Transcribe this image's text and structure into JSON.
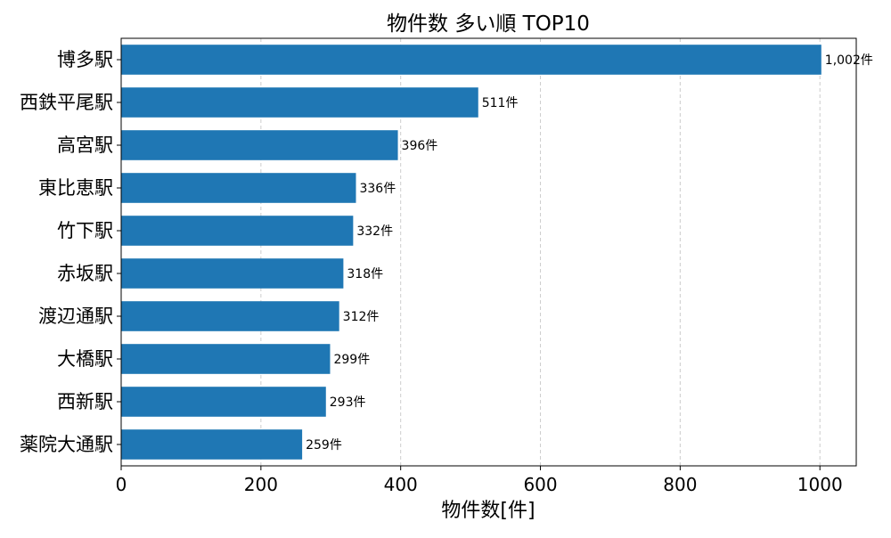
{
  "chart_data": {
    "type": "bar",
    "orientation": "horizontal",
    "title": "物件数 多い順 TOP10",
    "xlabel": "物件数[件]",
    "ylabel": "",
    "categories": [
      "博多駅",
      "西鉄平尾駅",
      "高宮駅",
      "東比恵駅",
      "竹下駅",
      "赤坂駅",
      "渡辺通駅",
      "大橋駅",
      "西新駅",
      "薬院大通駅"
    ],
    "values": [
      1002,
      511,
      396,
      336,
      332,
      318,
      312,
      299,
      293,
      259
    ],
    "data_labels": [
      "1,002件",
      "511件",
      "396件",
      "336件",
      "332件",
      "318件",
      "312件",
      "299件",
      "293件",
      "259件"
    ],
    "xlim": [
      0,
      1052
    ],
    "xticks": [
      0,
      200,
      400,
      600,
      800,
      1000
    ],
    "xtick_labels": [
      "0",
      "200",
      "400",
      "600",
      "800",
      "1000"
    ],
    "grid": "x-dashed",
    "bar_color": "#1f77b4"
  }
}
